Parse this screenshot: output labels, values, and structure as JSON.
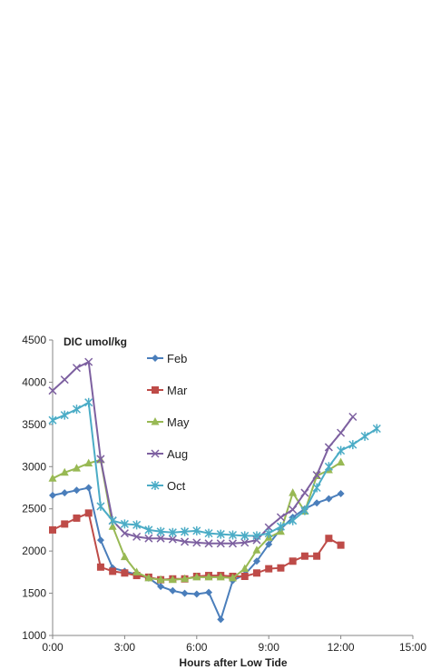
{
  "chart_data": {
    "type": "line",
    "title": "",
    "ylabel": "DIC umol/kg",
    "xlabel": "Hours after Low Tide",
    "xlim": [
      0,
      15
    ],
    "ylim": [
      1000,
      4500
    ],
    "xticks": [
      0,
      3,
      6,
      9,
      12,
      15
    ],
    "xtick_labels": [
      "0:00",
      "3:00",
      "6:00",
      "9:00",
      "12:00",
      "15:00"
    ],
    "yticks": [
      1000,
      1500,
      2000,
      2500,
      3000,
      3500,
      4000,
      4500
    ],
    "ytick_labels": [
      "1000",
      "1500",
      "2000",
      "2500",
      "3000",
      "3500",
      "4000",
      "4500"
    ],
    "grid": false,
    "legend_position": "top-center",
    "series": [
      {
        "name": "Feb",
        "color": "#4a7ebb",
        "marker": "diamond",
        "points": [
          [
            0,
            2660
          ],
          [
            0.5,
            2690
          ],
          [
            1,
            2720
          ],
          [
            1.5,
            2750
          ],
          [
            2,
            2130
          ],
          [
            2.5,
            1800
          ],
          [
            3,
            1760
          ],
          [
            3.5,
            1720
          ],
          [
            4,
            1680
          ],
          [
            4.5,
            1580
          ],
          [
            5,
            1530
          ],
          [
            5.5,
            1500
          ],
          [
            6,
            1490
          ],
          [
            6.5,
            1510
          ],
          [
            7,
            1190
          ],
          [
            7.5,
            1650
          ],
          [
            8,
            1720
          ],
          [
            8.5,
            1880
          ],
          [
            9,
            2080
          ],
          [
            9.5,
            2260
          ],
          [
            10,
            2400
          ],
          [
            10.5,
            2500
          ],
          [
            11,
            2570
          ],
          [
            11.5,
            2620
          ],
          [
            12,
            2680
          ]
        ]
      },
      {
        "name": "Mar",
        "color": "#be4b48",
        "marker": "square",
        "points": [
          [
            0,
            2250
          ],
          [
            0.5,
            2320
          ],
          [
            1,
            2390
          ],
          [
            1.5,
            2450
          ],
          [
            2,
            1810
          ],
          [
            2.5,
            1760
          ],
          [
            3,
            1740
          ],
          [
            3.5,
            1710
          ],
          [
            4,
            1690
          ],
          [
            4.5,
            1660
          ],
          [
            5,
            1670
          ],
          [
            5.5,
            1670
          ],
          [
            6,
            1700
          ],
          [
            6.5,
            1710
          ],
          [
            7,
            1710
          ],
          [
            7.5,
            1700
          ],
          [
            8,
            1700
          ],
          [
            8.5,
            1740
          ],
          [
            9,
            1790
          ],
          [
            9.5,
            1800
          ],
          [
            10,
            1880
          ],
          [
            10.5,
            1940
          ],
          [
            11,
            1940
          ],
          [
            11.5,
            2150
          ],
          [
            12,
            2070
          ]
        ]
      },
      {
        "name": "May",
        "color": "#98b954",
        "marker": "triangle",
        "points": [
          [
            0,
            2860
          ],
          [
            0.5,
            2930
          ],
          [
            1,
            2980
          ],
          [
            1.5,
            3040
          ],
          [
            2,
            3080
          ],
          [
            2.5,
            2290
          ],
          [
            3,
            1930
          ],
          [
            3.5,
            1750
          ],
          [
            4,
            1680
          ],
          [
            4.5,
            1660
          ],
          [
            5,
            1660
          ],
          [
            5.5,
            1670
          ],
          [
            6,
            1690
          ],
          [
            6.5,
            1690
          ],
          [
            7,
            1690
          ],
          [
            7.5,
            1680
          ],
          [
            8,
            1790
          ],
          [
            8.5,
            2010
          ],
          [
            9,
            2160
          ],
          [
            9.5,
            2230
          ],
          [
            10,
            2690
          ],
          [
            10.5,
            2470
          ],
          [
            11,
            2890
          ],
          [
            11.5,
            2960
          ],
          [
            12,
            3050
          ]
        ]
      },
      {
        "name": "Aug",
        "color": "#7d60a0",
        "marker": "x",
        "points": [
          [
            0,
            3900
          ],
          [
            0.5,
            4030
          ],
          [
            1,
            4170
          ],
          [
            1.5,
            4240
          ],
          [
            2,
            3090
          ],
          [
            2.5,
            2360
          ],
          [
            3,
            2210
          ],
          [
            3.5,
            2170
          ],
          [
            4,
            2150
          ],
          [
            4.5,
            2150
          ],
          [
            5,
            2140
          ],
          [
            5.5,
            2110
          ],
          [
            6,
            2100
          ],
          [
            6.5,
            2090
          ],
          [
            7,
            2090
          ],
          [
            7.5,
            2090
          ],
          [
            8,
            2100
          ],
          [
            8.5,
            2130
          ],
          [
            9,
            2280
          ],
          [
            9.5,
            2400
          ],
          [
            10,
            2490
          ],
          [
            10.5,
            2690
          ],
          [
            11,
            2900
          ],
          [
            11.5,
            3230
          ],
          [
            12,
            3400
          ],
          [
            12.5,
            3590
          ]
        ]
      },
      {
        "name": "Oct",
        "color": "#4bacc6",
        "marker": "asterisk",
        "points": [
          [
            0,
            3550
          ],
          [
            0.5,
            3610
          ],
          [
            1,
            3680
          ],
          [
            1.5,
            3760
          ],
          [
            2,
            2530
          ],
          [
            2.5,
            2360
          ],
          [
            3,
            2320
          ],
          [
            3.5,
            2310
          ],
          [
            4,
            2250
          ],
          [
            4.5,
            2230
          ],
          [
            5,
            2220
          ],
          [
            5.5,
            2230
          ],
          [
            6,
            2240
          ],
          [
            6.5,
            2210
          ],
          [
            7,
            2200
          ],
          [
            7.5,
            2190
          ],
          [
            8,
            2180
          ],
          [
            8.5,
            2180
          ],
          [
            9,
            2210
          ],
          [
            9.5,
            2290
          ],
          [
            10,
            2360
          ],
          [
            10.5,
            2480
          ],
          [
            11,
            2750
          ],
          [
            11.5,
            3000
          ],
          [
            12,
            3190
          ],
          [
            12.5,
            3260
          ],
          [
            13,
            3360
          ],
          [
            13.5,
            3450
          ]
        ]
      }
    ]
  }
}
